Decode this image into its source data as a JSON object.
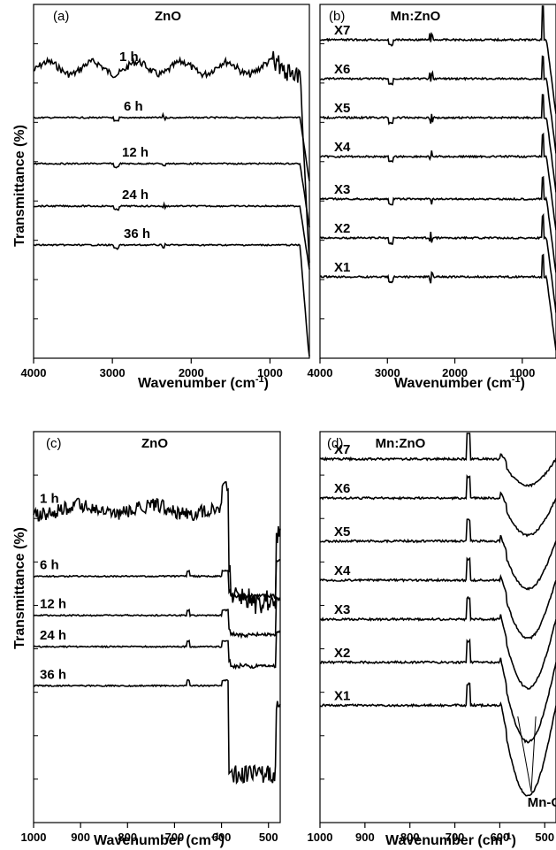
{
  "figure": {
    "ylabel_left": "Transmittance (%)",
    "xlabel_text": "Wavenumber (cm",
    "xlabel_sup": "-1",
    "xlabel_close": ")"
  },
  "chart_data": [
    {
      "panel": "(a)",
      "title": "ZnO",
      "type": "line",
      "xlabel": "Wavenumber (cm-1)",
      "ylabel": "Transmittance (%)",
      "xlim": [
        4000,
        500
      ],
      "xticks": [
        4000,
        3000,
        2000,
        1000
      ],
      "xreversed": true,
      "series": [
        {
          "name": "1 h",
          "level": 0.82,
          "kind": "noisy"
        },
        {
          "name": "6 h",
          "level": 0.68,
          "kind": "flat"
        },
        {
          "name": "12 h",
          "level": 0.55,
          "kind": "flat"
        },
        {
          "name": "24 h",
          "level": 0.43,
          "kind": "flat"
        },
        {
          "name": "36 h",
          "level": 0.32,
          "kind": "flat"
        }
      ],
      "features": [
        {
          "x": 520,
          "note": "strong Zn-O absorption band"
        }
      ]
    },
    {
      "panel": "(b)",
      "title": "Mn:ZnO",
      "type": "line",
      "xlabel": "Wavenumber (cm-1)",
      "xlim": [
        4000,
        500
      ],
      "xticks": [
        4000,
        3000,
        2000,
        1000
      ],
      "xreversed": true,
      "series": [
        {
          "name": "X7",
          "level": 0.9
        },
        {
          "name": "X6",
          "level": 0.79
        },
        {
          "name": "X5",
          "level": 0.68
        },
        {
          "name": "X4",
          "level": 0.57
        },
        {
          "name": "X3",
          "level": 0.45
        },
        {
          "name": "X2",
          "level": 0.34
        },
        {
          "name": "X1",
          "level": 0.23
        }
      ],
      "features": [
        {
          "x": 670,
          "note": "sharp peak"
        }
      ]
    },
    {
      "panel": "(c)",
      "title": "ZnO",
      "type": "line",
      "xlabel": "Wavenumber (cm-1)",
      "ylabel": "Transmittance (%)",
      "xlim": [
        1000,
        475
      ],
      "xticks": [
        1000,
        900,
        800,
        700,
        600,
        500
      ],
      "xreversed": true,
      "series": [
        {
          "name": "1 h",
          "level": 0.8
        },
        {
          "name": "6 h",
          "level": 0.63
        },
        {
          "name": "12 h",
          "level": 0.53
        },
        {
          "name": "24 h",
          "level": 0.45
        },
        {
          "name": "36 h",
          "level": 0.35
        }
      ]
    },
    {
      "panel": "(d)",
      "title": "Mn:ZnO",
      "type": "line",
      "xlabel": "Wavenumber (cm-1)",
      "xlim": [
        1000,
        475
      ],
      "xticks": [
        1000,
        900,
        800,
        700,
        600,
        500
      ],
      "xreversed": true,
      "series": [
        {
          "name": "X7",
          "level": 0.93
        },
        {
          "name": "X6",
          "level": 0.83
        },
        {
          "name": "X5",
          "level": 0.72
        },
        {
          "name": "X4",
          "level": 0.62
        },
        {
          "name": "X3",
          "level": 0.52
        },
        {
          "name": "X2",
          "level": 0.41
        },
        {
          "name": "X1",
          "level": 0.3
        }
      ],
      "annotations": [
        {
          "text": "Mn-O",
          "x": 540
        }
      ],
      "features": [
        {
          "x": 670,
          "note": "sharp peak"
        }
      ]
    }
  ]
}
